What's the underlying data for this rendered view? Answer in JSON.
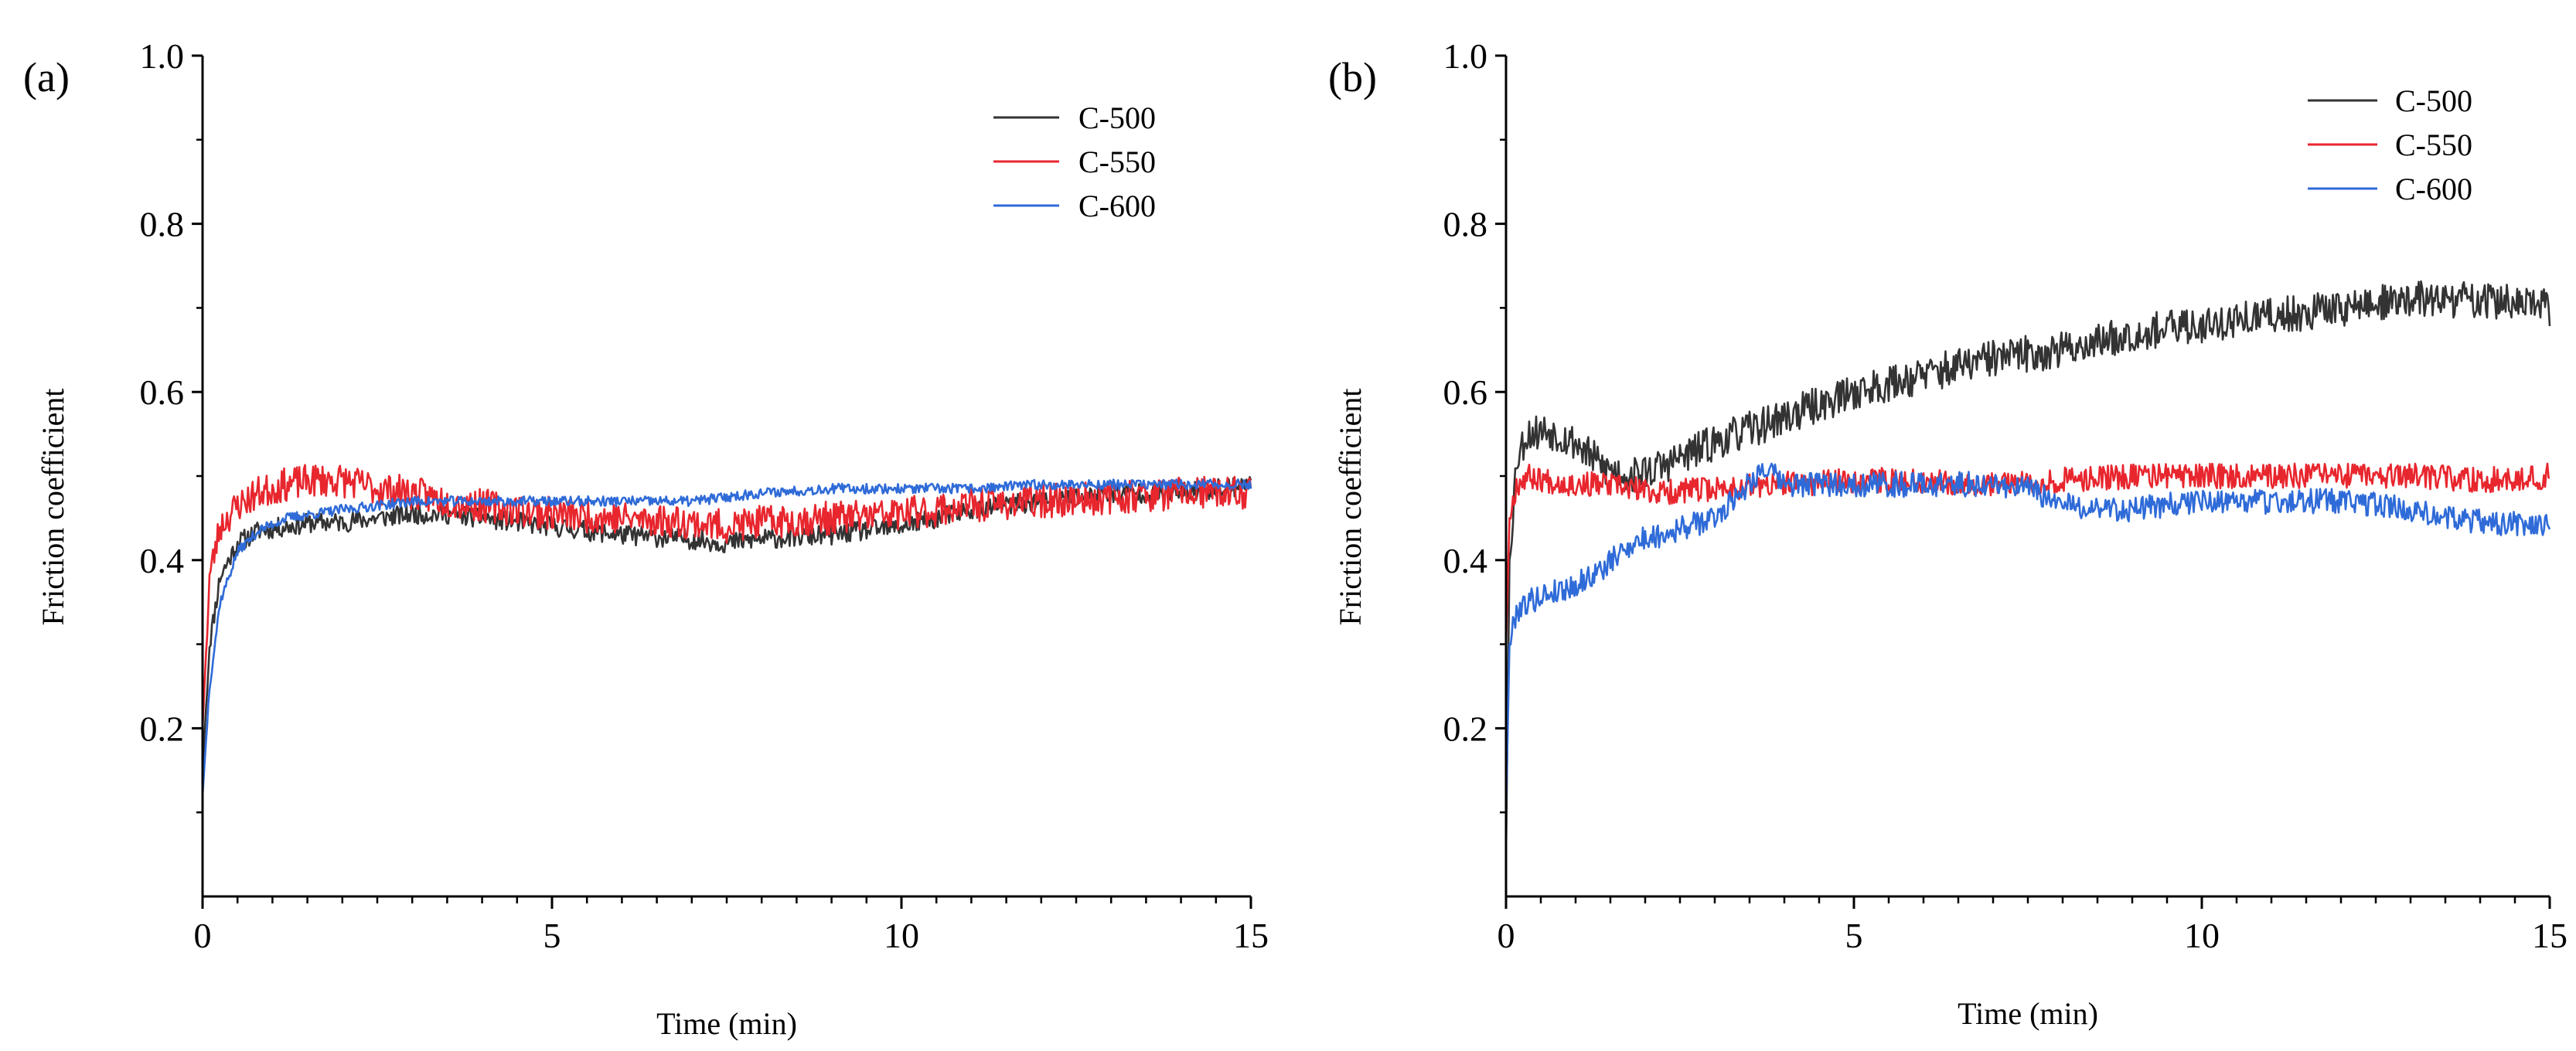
{
  "chart_data": [
    {
      "type": "line",
      "panel_label": "(a)",
      "title": "",
      "xlabel": "Time (min)",
      "ylabel": "Friction coefficient",
      "xlim": [
        0,
        15
      ],
      "ylim": [
        0.0,
        1.0
      ],
      "xticks": [
        0,
        5,
        10,
        15
      ],
      "xtick_labels": [
        "0",
        "5",
        "10",
        "15"
      ],
      "yticks": [
        0.2,
        0.4,
        0.6,
        0.8,
        1.0
      ],
      "ytick_labels": [
        "0.2",
        "0.4",
        "0.6",
        "0.8",
        "1.0"
      ],
      "legend_position": "top-right",
      "series": [
        {
          "name": "C-500",
          "color": "#333333",
          "noise": 0.012,
          "seed": 11,
          "x": [
            0,
            0.1,
            0.25,
            0.5,
            0.8,
            1.2,
            1.6,
            2,
            2.5,
            3,
            3.5,
            4,
            5,
            6,
            7,
            7.5,
            8,
            9,
            10,
            11,
            12,
            13,
            14,
            15
          ],
          "y": [
            0.15,
            0.3,
            0.38,
            0.42,
            0.435,
            0.44,
            0.445,
            0.445,
            0.45,
            0.455,
            0.455,
            0.45,
            0.44,
            0.43,
            0.425,
            0.42,
            0.425,
            0.43,
            0.44,
            0.46,
            0.47,
            0.48,
            0.48,
            0.49
          ]
        },
        {
          "name": "C-550",
          "color": "#e8262e",
          "noise": 0.02,
          "seed": 23,
          "x": [
            0,
            0.1,
            0.25,
            0.5,
            0.8,
            1.2,
            1.6,
            2,
            2.5,
            3,
            3.5,
            4,
            5,
            6,
            7,
            7.5,
            8,
            9,
            10,
            11,
            12,
            13,
            14,
            15
          ],
          "y": [
            0.2,
            0.38,
            0.44,
            0.465,
            0.48,
            0.49,
            0.495,
            0.495,
            0.485,
            0.48,
            0.47,
            0.465,
            0.455,
            0.45,
            0.445,
            0.44,
            0.445,
            0.45,
            0.455,
            0.465,
            0.47,
            0.475,
            0.48,
            0.48
          ]
        },
        {
          "name": "C-600",
          "color": "#2f6bd8",
          "noise": 0.006,
          "seed": 37,
          "x": [
            0,
            0.1,
            0.25,
            0.5,
            0.8,
            1.2,
            1.6,
            2,
            2.5,
            3,
            3.5,
            4,
            5,
            6,
            7,
            7.5,
            8,
            9,
            10,
            11,
            12,
            13,
            14,
            15
          ],
          "y": [
            0.12,
            0.25,
            0.35,
            0.41,
            0.435,
            0.45,
            0.455,
            0.46,
            0.465,
            0.47,
            0.47,
            0.47,
            0.47,
            0.47,
            0.47,
            0.475,
            0.48,
            0.485,
            0.485,
            0.485,
            0.49,
            0.49,
            0.49,
            0.49
          ]
        }
      ]
    },
    {
      "type": "line",
      "panel_label": "(b)",
      "title": "",
      "xlabel": "Time (min)",
      "ylabel": "Friction coefficient",
      "xlim": [
        0,
        15
      ],
      "ylim": [
        0.0,
        1.0
      ],
      "xticks": [
        0,
        5,
        10,
        15
      ],
      "xtick_labels": [
        "0",
        "5",
        "10",
        "15"
      ],
      "yticks": [
        0.2,
        0.4,
        0.6,
        0.8,
        1.0
      ],
      "ytick_labels": [
        "0.2",
        "0.4",
        "0.6",
        "0.8",
        "1.0"
      ],
      "legend_position": "top-right",
      "series": [
        {
          "name": "C-500",
          "color": "#333333",
          "noise": 0.022,
          "seed": 53,
          "x": [
            0,
            0.05,
            0.15,
            0.3,
            0.6,
            1,
            1.4,
            1.8,
            2.2,
            3,
            4,
            5,
            6,
            7,
            8,
            9,
            10,
            11,
            12,
            13,
            14,
            15
          ],
          "y": [
            0.05,
            0.4,
            0.52,
            0.55,
            0.555,
            0.54,
            0.51,
            0.5,
            0.51,
            0.54,
            0.57,
            0.6,
            0.62,
            0.64,
            0.65,
            0.67,
            0.68,
            0.69,
            0.7,
            0.71,
            0.71,
            0.7
          ]
        },
        {
          "name": "C-550",
          "color": "#e8262e",
          "noise": 0.015,
          "seed": 67,
          "x": [
            0,
            0.05,
            0.15,
            0.3,
            0.6,
            1,
            1.4,
            1.8,
            2.2,
            3,
            4,
            5,
            6,
            7,
            8,
            9,
            10,
            11,
            12,
            13,
            14,
            15
          ],
          "y": [
            0.3,
            0.45,
            0.49,
            0.5,
            0.495,
            0.49,
            0.49,
            0.485,
            0.48,
            0.485,
            0.49,
            0.495,
            0.495,
            0.49,
            0.495,
            0.5,
            0.5,
            0.5,
            0.5,
            0.5,
            0.495,
            0.5
          ]
        },
        {
          "name": "C-600",
          "color": "#2f6bd8",
          "noise": 0.015,
          "seed": 79,
          "x": [
            0,
            0.05,
            0.15,
            0.3,
            0.6,
            1,
            1.4,
            1.8,
            2.2,
            3,
            3.7,
            4,
            5,
            6,
            7,
            7.5,
            8,
            9,
            10,
            11,
            12,
            13,
            14,
            15
          ],
          "y": [
            0.1,
            0.3,
            0.34,
            0.35,
            0.36,
            0.37,
            0.39,
            0.42,
            0.43,
            0.45,
            0.51,
            0.49,
            0.49,
            0.49,
            0.49,
            0.485,
            0.465,
            0.46,
            0.47,
            0.47,
            0.47,
            0.46,
            0.445,
            0.44
          ]
        }
      ]
    }
  ]
}
